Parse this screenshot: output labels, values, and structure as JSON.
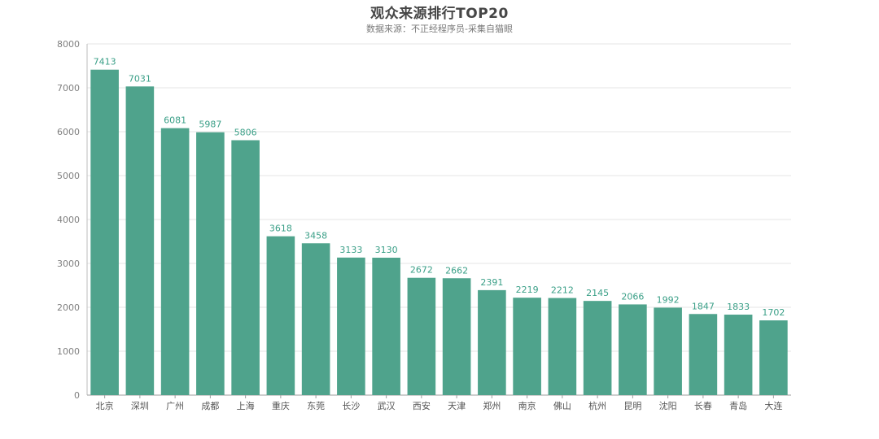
{
  "chart_data": {
    "type": "bar",
    "title": "观众来源排行TOP20",
    "subtitle": "数据来源：不正经程序员-采集自猫眼",
    "categories": [
      "北京",
      "深圳",
      "广州",
      "成都",
      "上海",
      "重庆",
      "东莞",
      "长沙",
      "武汉",
      "西安",
      "天津",
      "郑州",
      "南京",
      "佛山",
      "杭州",
      "昆明",
      "沈阳",
      "长春",
      "青岛",
      "大连"
    ],
    "values": [
      7413,
      7031,
      6081,
      5987,
      5806,
      3618,
      3458,
      3133,
      3130,
      2672,
      2662,
      2391,
      2219,
      2212,
      2145,
      2066,
      1992,
      1847,
      1833,
      1702
    ],
    "ylim": [
      0,
      8000
    ],
    "yticks": [
      0,
      1000,
      2000,
      3000,
      4000,
      5000,
      6000,
      7000,
      8000
    ],
    "grid": true,
    "bar_color": "#4fa38c",
    "label_color": "#3a9f87"
  }
}
